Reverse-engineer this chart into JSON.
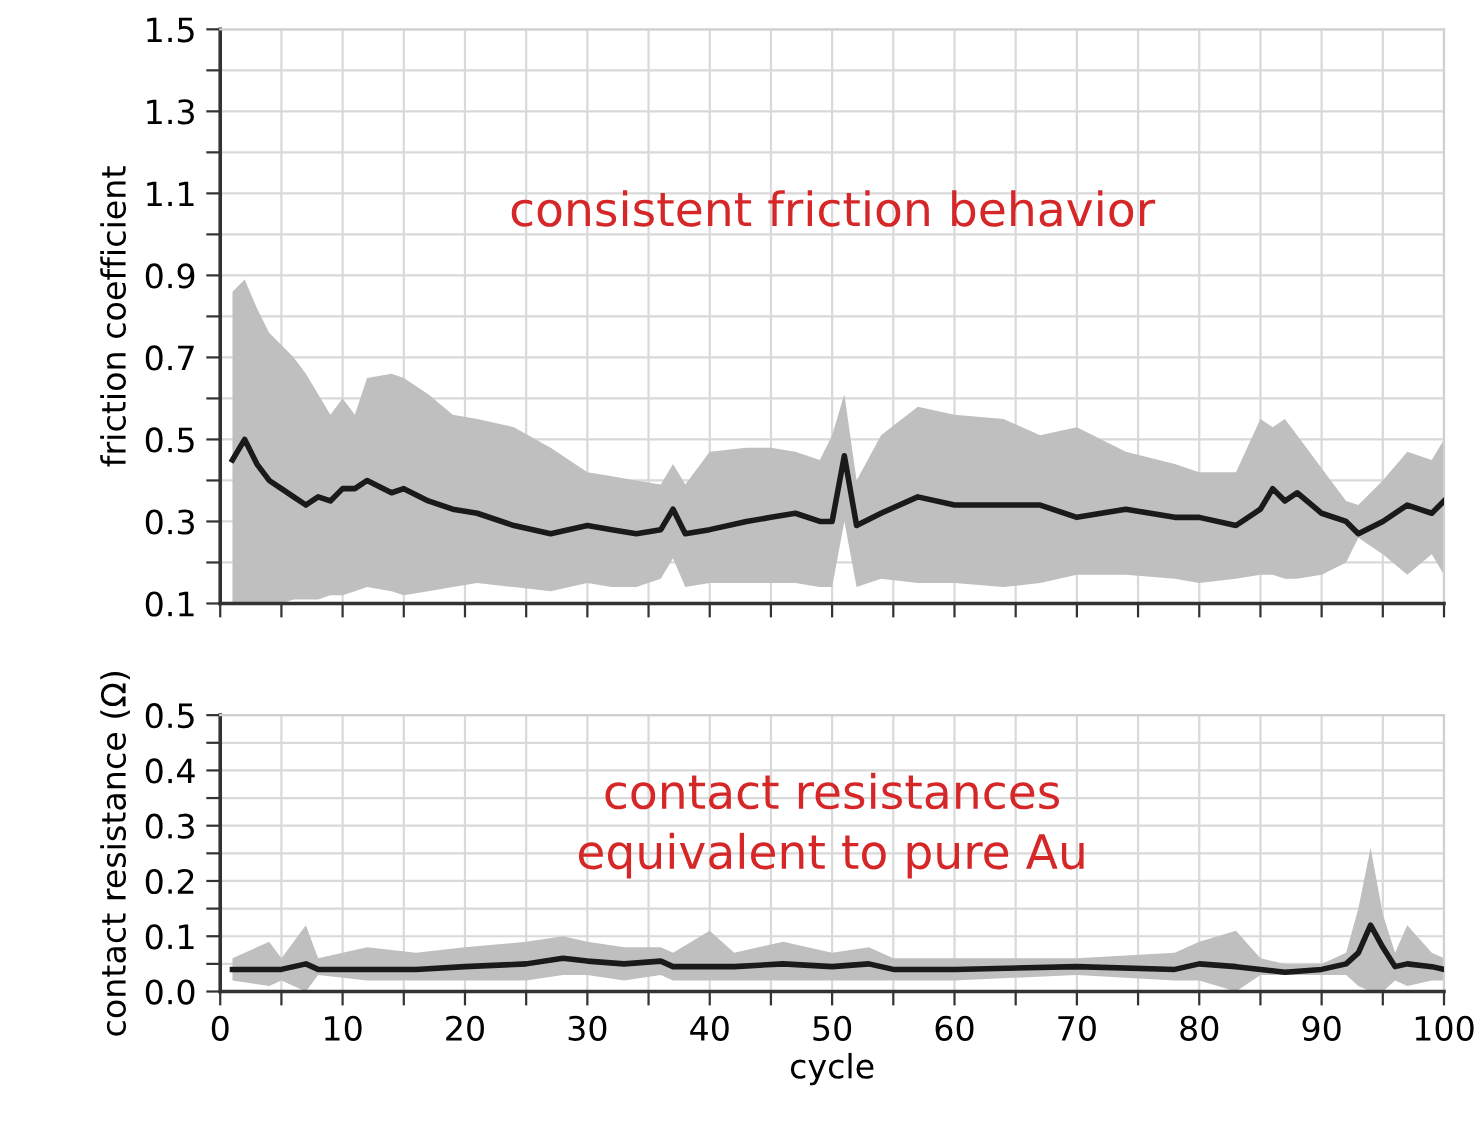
{
  "chart_data": [
    {
      "type": "line",
      "ylabel": "friction coefficient",
      "annotations": [
        "consistent friction behavior"
      ],
      "grid": true,
      "tick_labels": "y",
      "marker": "none",
      "line_style": "solid",
      "xlim": [
        0,
        100
      ],
      "xticks": [
        {
          "value": 0,
          "label": null
        },
        {
          "value": 10,
          "label": null
        },
        {
          "value": 20,
          "label": null
        },
        {
          "value": 30,
          "label": null
        },
        {
          "value": 40,
          "label": null
        },
        {
          "value": 50,
          "label": null
        },
        {
          "value": 60,
          "label": null
        },
        {
          "value": 70,
          "label": null
        },
        {
          "value": 80,
          "label": null
        },
        {
          "value": 90,
          "label": null
        },
        {
          "value": 100,
          "label": null
        },
        {
          "value": 5,
          "label": null
        },
        {
          "value": 15,
          "label": null
        },
        {
          "value": 25,
          "label": null
        },
        {
          "value": 35,
          "label": null
        },
        {
          "value": 45,
          "label": null
        },
        {
          "value": 55,
          "label": null
        },
        {
          "value": 65,
          "label": null
        },
        {
          "value": 75,
          "label": null
        },
        {
          "value": 85,
          "label": null
        },
        {
          "value": 95,
          "label": null
        }
      ],
      "ylim": [
        0.1,
        1.5
      ],
      "yticks": [
        0.1,
        0.3,
        0.5,
        0.7,
        0.9,
        1.1,
        1.3,
        1.5,
        {
          "value": 0.2,
          "label": null
        },
        {
          "value": 0.4,
          "label": null
        },
        {
          "value": 0.6,
          "label": null
        },
        {
          "value": 0.8,
          "label": null
        },
        {
          "value": 1.0,
          "label": null
        },
        {
          "value": 1.2,
          "label": null
        },
        {
          "value": 1.4,
          "label": null
        }
      ],
      "series": [
        {
          "color": "#1a1a1a",
          "x": [
            1,
            2,
            3,
            4,
            5,
            6,
            7,
            8,
            9,
            10,
            11,
            12,
            14,
            15,
            17,
            19,
            21,
            24,
            27,
            30,
            32,
            34,
            36,
            37,
            38,
            40,
            43,
            45,
            47,
            49,
            50,
            51,
            52,
            54,
            57,
            60,
            64,
            67,
            70,
            74,
            78,
            80,
            83,
            85,
            86,
            87,
            88,
            90,
            92,
            93,
            95,
            97,
            99,
            100
          ],
          "values": [
            0.45,
            0.5,
            0.44,
            0.4,
            0.38,
            0.36,
            0.34,
            0.36,
            0.35,
            0.38,
            0.38,
            0.4,
            0.37,
            0.38,
            0.35,
            0.33,
            0.32,
            0.29,
            0.27,
            0.29,
            0.28,
            0.27,
            0.28,
            0.33,
            0.27,
            0.28,
            0.3,
            0.31,
            0.32,
            0.3,
            0.3,
            0.46,
            0.29,
            0.32,
            0.36,
            0.34,
            0.34,
            0.34,
            0.31,
            0.33,
            0.31,
            0.31,
            0.29,
            0.33,
            0.38,
            0.35,
            0.37,
            0.32,
            0.3,
            0.27,
            0.3,
            0.34,
            0.32,
            0.35
          ],
          "upper": [
            0.86,
            0.89,
            0.82,
            0.76,
            0.73,
            0.7,
            0.66,
            0.61,
            0.56,
            0.6,
            0.56,
            0.65,
            0.66,
            0.65,
            0.61,
            0.56,
            0.55,
            0.53,
            0.48,
            0.42,
            0.41,
            0.4,
            0.39,
            0.44,
            0.39,
            0.47,
            0.48,
            0.48,
            0.47,
            0.45,
            0.51,
            0.61,
            0.4,
            0.51,
            0.58,
            0.56,
            0.55,
            0.51,
            0.53,
            0.47,
            0.44,
            0.42,
            0.42,
            0.55,
            0.53,
            0.55,
            0.51,
            0.43,
            0.35,
            0.34,
            0.4,
            0.47,
            0.45,
            0.5
          ],
          "lower": [
            0.1,
            0.1,
            0.1,
            0.1,
            0.1,
            0.11,
            0.11,
            0.11,
            0.12,
            0.12,
            0.13,
            0.14,
            0.13,
            0.12,
            0.13,
            0.14,
            0.15,
            0.14,
            0.13,
            0.15,
            0.14,
            0.14,
            0.16,
            0.21,
            0.14,
            0.15,
            0.15,
            0.15,
            0.15,
            0.14,
            0.14,
            0.3,
            0.14,
            0.16,
            0.15,
            0.15,
            0.14,
            0.15,
            0.17,
            0.17,
            0.16,
            0.15,
            0.16,
            0.17,
            0.17,
            0.16,
            0.16,
            0.17,
            0.2,
            0.26,
            0.22,
            0.17,
            0.22,
            0.17
          ]
        }
      ]
    },
    {
      "type": "line",
      "ylabel": "contact resistance (Ω)",
      "xlabel": "cycle",
      "annotations": [
        "contact resistances\nequivalent to pure Au"
      ],
      "grid": true,
      "marker": "none",
      "line_style": "solid",
      "xlim": [
        0,
        100
      ],
      "xticks": [
        0,
        10,
        20,
        30,
        40,
        50,
        60,
        70,
        80,
        90,
        100,
        {
          "value": 5,
          "label": null
        },
        {
          "value": 15,
          "label": null
        },
        {
          "value": 25,
          "label": null
        },
        {
          "value": 35,
          "label": null
        },
        {
          "value": 45,
          "label": null
        },
        {
          "value": 55,
          "label": null
        },
        {
          "value": 65,
          "label": null
        },
        {
          "value": 75,
          "label": null
        },
        {
          "value": 85,
          "label": null
        },
        {
          "value": 95,
          "label": null
        }
      ],
      "ylim": [
        0,
        0.5
      ],
      "yticks": [
        {
          "value": 0,
          "label": "0.0"
        },
        0.1,
        0.2,
        0.3,
        0.4,
        0.5,
        {
          "value": 0.05,
          "label": null
        },
        {
          "value": 0.15,
          "label": null
        },
        {
          "value": 0.25,
          "label": null
        },
        {
          "value": 0.35,
          "label": null
        },
        {
          "value": 0.45,
          "label": null
        }
      ],
      "series": [
        {
          "color": "#1a1a1a",
          "x": [
            1,
            4,
            5,
            7,
            8,
            12,
            16,
            20,
            25,
            28,
            30,
            33,
            36,
            37,
            40,
            42,
            46,
            50,
            53,
            55,
            60,
            70,
            78,
            80,
            83,
            85,
            87,
            90,
            92,
            93,
            94,
            95,
            96,
            97,
            99,
            100
          ],
          "values": [
            0.04,
            0.04,
            0.04,
            0.05,
            0.04,
            0.04,
            0.04,
            0.045,
            0.05,
            0.06,
            0.055,
            0.05,
            0.055,
            0.045,
            0.045,
            0.045,
            0.05,
            0.045,
            0.05,
            0.04,
            0.04,
            0.045,
            0.04,
            0.05,
            0.045,
            0.04,
            0.035,
            0.04,
            0.05,
            0.07,
            0.12,
            0.08,
            0.045,
            0.05,
            0.045,
            0.04
          ],
          "upper": [
            0.06,
            0.09,
            0.06,
            0.12,
            0.06,
            0.08,
            0.07,
            0.08,
            0.09,
            0.1,
            0.09,
            0.08,
            0.08,
            0.07,
            0.11,
            0.07,
            0.09,
            0.07,
            0.08,
            0.06,
            0.06,
            0.06,
            0.07,
            0.09,
            0.11,
            0.06,
            0.05,
            0.05,
            0.07,
            0.15,
            0.26,
            0.14,
            0.07,
            0.12,
            0.07,
            0.06
          ],
          "lower": [
            0.02,
            0.01,
            0.02,
            0.0,
            0.03,
            0.02,
            0.02,
            0.02,
            0.02,
            0.03,
            0.03,
            0.02,
            0.03,
            0.02,
            0.02,
            0.02,
            0.02,
            0.02,
            0.02,
            0.02,
            0.02,
            0.03,
            0.02,
            0.02,
            0.0,
            0.03,
            0.03,
            0.03,
            0.03,
            0.01,
            0.0,
            0.0,
            0.02,
            0.01,
            0.02,
            0.02
          ]
        }
      ]
    }
  ]
}
